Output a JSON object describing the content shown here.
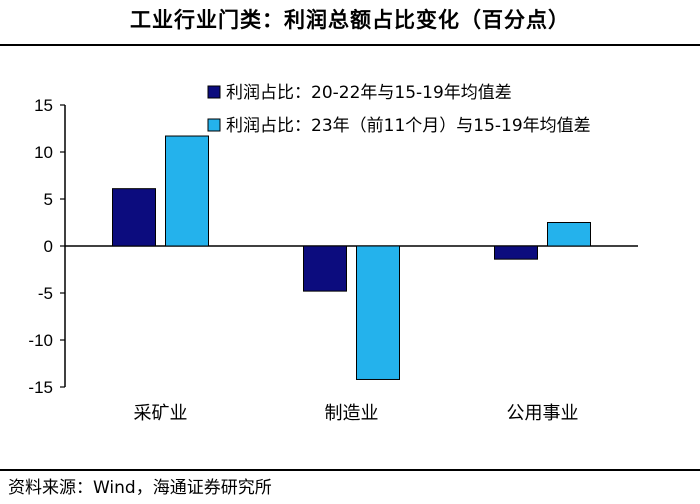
{
  "title": "工业行业门类：利润总额占比变化（百分点）",
  "source": "资料来源：Wind，海通证券研究所",
  "chart_data": {
    "type": "bar",
    "categories": [
      "采矿业",
      "制造业",
      "公用事业"
    ],
    "series": [
      {
        "name": "利润占比：20-22年与15-19年均值差",
        "values": [
          6.1,
          -4.8,
          -1.4
        ],
        "color": "#0c0c7e"
      },
      {
        "name": "利润占比：23年（前11个月）与15-19年均值差",
        "values": [
          11.7,
          -14.2,
          2.5
        ],
        "color": "#24b2ec"
      }
    ],
    "ylim": [
      -15,
      15
    ],
    "yticks": [
      15,
      10,
      5,
      0,
      -5,
      -10,
      -15
    ],
    "ytick_labels": [
      "15",
      "10",
      "5",
      "0",
      "-5",
      "-10",
      "-15"
    ],
    "legend_position": "top-right",
    "grid": false
  }
}
